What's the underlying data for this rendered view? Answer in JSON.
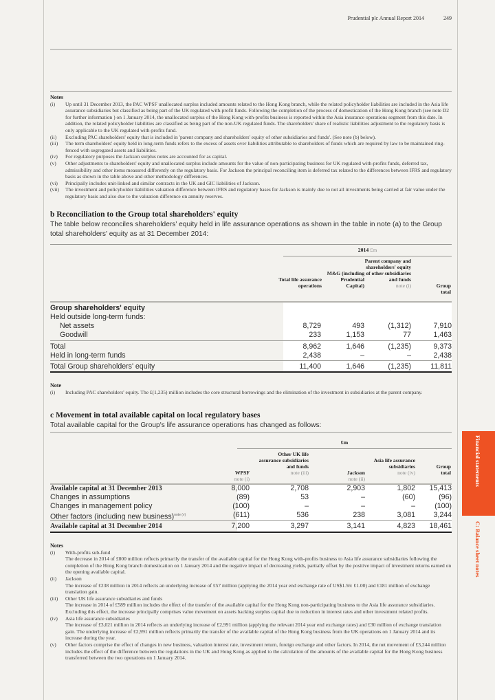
{
  "header": {
    "title": "Prudential plc  Annual Report 2014",
    "page": "249"
  },
  "side_tabs": {
    "section": "Financial statements",
    "subsection": "C: Balance sheet notes",
    "accent": "#ee5223"
  },
  "notes_a": {
    "title": "Notes",
    "items": [
      {
        "num": "(i)",
        "text": "Up until 31 December 2013, the PAC WPSF unallocated surplus included amounts related to the Hong Kong branch, while the related policyholder liabilities are included in the Asia life assurance subsidiaries but classified as being part of the UK regulated with-profit funds. Following the completion of the process of domestication of the Hong Kong branch (see note D2 for further information ) on 1 January 2014, the unallocated surplus of the Hong Kong with-profits business is reported within the Asia insurance operations segment from this date. In addition, the related policyholder liabilities are classified as being part of the non-UK regulated funds. The shareholders' share of realistic liabilities adjustment to the regulatory basis is only applicable to the UK regulated with-profits fund."
      },
      {
        "num": "(ii)",
        "text": "Excluding PAC shareholders' equity that is included in 'parent company and shareholders' equity of other subsidiaries and funds'. (See note (b) below)."
      },
      {
        "num": "(iii)",
        "text": "The term shareholders' equity held in long-term funds refers to the excess of assets over liabilities attributable to shareholders of funds which are required by law to be maintained ring-fenced with segregated assets and liabilities."
      },
      {
        "num": "(iv)",
        "text": "For regulatory purposes the Jackson surplus notes are accounted for as capital."
      },
      {
        "num": "(v)",
        "text": "Other adjustments to shareholders' equity and unallocated surplus include amounts for the value of non-participating business for UK regulated with-profits funds, deferred tax, admissibility and other items measured differently on the regulatory basis. For Jackson the principal reconciling item is deferred tax related to the differences between IFRS and regulatory basis as shown in the table above and other methodology differences."
      },
      {
        "num": "(vi)",
        "text": "Principally includes unit-linked and similar contracts in the UK and GIC liabilities of Jackson."
      },
      {
        "num": "(vii)",
        "text": "The investment and policyholder liabilities valuation difference between IFRS and regulatory bases for Jackson is mainly due to not all investments being carried at fair value under the regulatory basis and also due to the valuation difference on annuity reserves."
      }
    ]
  },
  "section_b": {
    "heading": "b Reconciliation to the Group total shareholders' equity",
    "intro": "The table below reconciles shareholders' equity held in life assurance operations as shown in the table in note (a) to the Group total shareholders' equity as at 31 December 2014:",
    "group_header": {
      "year": "2014",
      "unit": "£m"
    },
    "columns": [
      {
        "label": "Total life assurance operations",
        "note": ""
      },
      {
        "label": "M&G (including Prudential Capital)",
        "note": ""
      },
      {
        "label": "Parent company and shareholders' equity of other subsidiaries and funds",
        "note": "note (i)"
      },
      {
        "label": "Group total",
        "note": ""
      }
    ],
    "rows": [
      {
        "label": "Group shareholders' equity",
        "values": [
          "",
          "",
          "",
          ""
        ]
      },
      {
        "label": "Held outside long-term funds:",
        "values": [
          "",
          "",
          "",
          ""
        ]
      },
      {
        "label": "Net assets",
        "values": [
          "8,729",
          "493",
          "(1,312)",
          "7,910"
        ]
      },
      {
        "label": "Goodwill",
        "values": [
          "233",
          "1,153",
          "77",
          "1,463"
        ]
      },
      {
        "label": "Total",
        "values": [
          "8,962",
          "1,646",
          "(1,235)",
          "9,373"
        ]
      },
      {
        "label": "Held in long-term funds",
        "values": [
          "2,438",
          "–",
          "–",
          "2,438"
        ]
      },
      {
        "label": "Total Group shareholders' equity",
        "values": [
          "11,400",
          "1,646",
          "(1,235)",
          "11,811"
        ]
      }
    ],
    "note_title": "Note",
    "note": {
      "num": "(i)",
      "text": "Including PAC shareholders' equity. The £(1,235) million includes the core structural borrowings and the elimination of the investment in subsidiaries at the parent company."
    }
  },
  "section_c": {
    "heading": "c Movement in total available capital on local regulatory bases",
    "intro": "Total available capital for the Group's life assurance operations has changed as follows:",
    "group_header": "£m",
    "columns": [
      {
        "label": "WPSF",
        "note": "note (i)"
      },
      {
        "label": "Other UK life assurance subsidiaries and funds",
        "note": "note (iii)"
      },
      {
        "label": "Jackson",
        "note": "note (ii)"
      },
      {
        "label": "Asia life assurance subsidiaries",
        "note": "note (iv)"
      },
      {
        "label": "Group total",
        "note": ""
      }
    ],
    "rows": [
      {
        "label": "Available capital at 31 December 2013",
        "values": [
          "8,000",
          "2,708",
          "2,903",
          "1,802",
          "15,413"
        ]
      },
      {
        "label": "Changes in assumptions",
        "values": [
          "(89)",
          "53",
          "–",
          "(60)",
          "(96)"
        ]
      },
      {
        "label": "Changes in management policy",
        "values": [
          "(100)",
          "–",
          "–",
          "–",
          "(100)"
        ]
      },
      {
        "label": "Other factors (including new business)",
        "sup": "note (v)",
        "values": [
          "(611)",
          "536",
          "238",
          "3,081",
          "3,244"
        ]
      },
      {
        "label": "Available capital at 31 December 2014",
        "values": [
          "7,200",
          "3,297",
          "3,141",
          "4,823",
          "18,461"
        ]
      }
    ],
    "notes_title": "Notes",
    "notes": [
      {
        "num": "(i)",
        "title": "With-profits sub-fund",
        "text": "The decrease in 2014 of £800 million reflects primarily the transfer of the available capital for the Hong Kong with-profits business to Asia life assurance subsidiaries following the completion of the Hong Kong branch domestication on 1 January 2014 and the negative impact of decreasing yields, partially offset by the positive impact of investment returns earned on the opening available capital."
      },
      {
        "num": "(ii)",
        "title": "Jackson",
        "text": "The increase of £238 million in 2014 reflects an underlying increase of £57 million (applying the 2014 year end exchange rate of US$1.56: £1.00) and £181 million of exchange translation gain."
      },
      {
        "num": "(iii)",
        "title": "Other UK life assurance subsidiaries and funds",
        "text": "The increase in 2014 of £589 million includes the effect of the transfer of the available capital for the Hong Kong non-participating business to the Asia life assurance subsidiaries. Excluding this effect, the increase principally comprises value movement on assets backing surplus capital due to reduction in interest rates and other investment related profits."
      },
      {
        "num": "(iv)",
        "title": "Asia life assurance subsidiaries",
        "text": "The increase of £3,021 million in 2014 reflects an underlying increase of £2,991 million (applying the relevant 2014 year end exchange rates) and £30 million of exchange translation gain. The underlying increase of £2,991 million reflects primarily the transfer of the available capital of the Hong Kong business from the UK operations on 1 January 2014 and its increase during the year."
      },
      {
        "num": "(v)",
        "title": "",
        "text": "Other factors comprise the effect of changes in new business, valuation interest rate, investment return, foreign exchange and other factors. In 2014, the net movement of £3,244 million includes the effect of the difference between the regulations in the UK and Hong Kong as applied to the calculation of the amounts of the available capital for the Hong Kong business transferred between the two operations on 1 January 2014."
      }
    ]
  }
}
